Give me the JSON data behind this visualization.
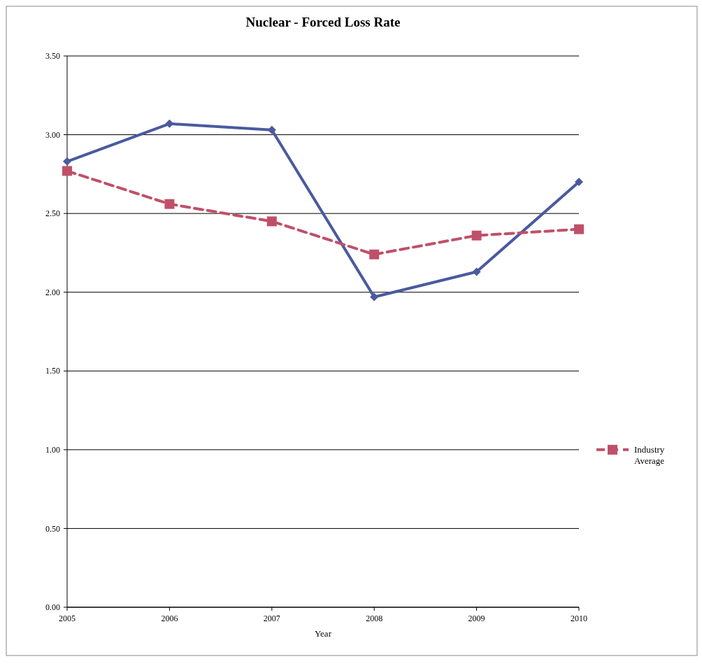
{
  "chart_data": {
    "type": "line",
    "title": "Nuclear - Forced Loss Rate",
    "xlabel": "Year",
    "x": [
      2005,
      2006,
      2007,
      2008,
      2009,
      2010
    ],
    "series": [
      {
        "color": "#4a5a9e",
        "marker": "diamond",
        "line_style": "solid",
        "values": [
          2.83,
          3.07,
          3.03,
          1.97,
          2.13,
          2.7
        ]
      },
      {
        "name": "Industry Average",
        "color": "#c0506a",
        "marker": "square",
        "line_style": "dashed",
        "values": [
          2.77,
          2.56,
          2.45,
          2.24,
          2.36,
          2.4
        ]
      }
    ],
    "xlim": [
      2005,
      2010
    ],
    "xticks": [
      2005,
      2006,
      2007,
      2008,
      2009,
      2010
    ],
    "ylim": [
      0,
      3.5
    ],
    "yticks": [
      {
        "value": 0,
        "label": "0.00"
      },
      {
        "value": 0.5,
        "label": "0.50"
      },
      {
        "value": 1,
        "label": "1.00"
      },
      {
        "value": 1.5,
        "label": "1.50"
      },
      {
        "value": 2,
        "label": "2.00"
      },
      {
        "value": 2.5,
        "label": "2.50"
      },
      {
        "value": 3,
        "label": "3.00"
      },
      {
        "value": 3.5,
        "label": "3.50"
      }
    ],
    "grid": "y",
    "legend": "right"
  }
}
